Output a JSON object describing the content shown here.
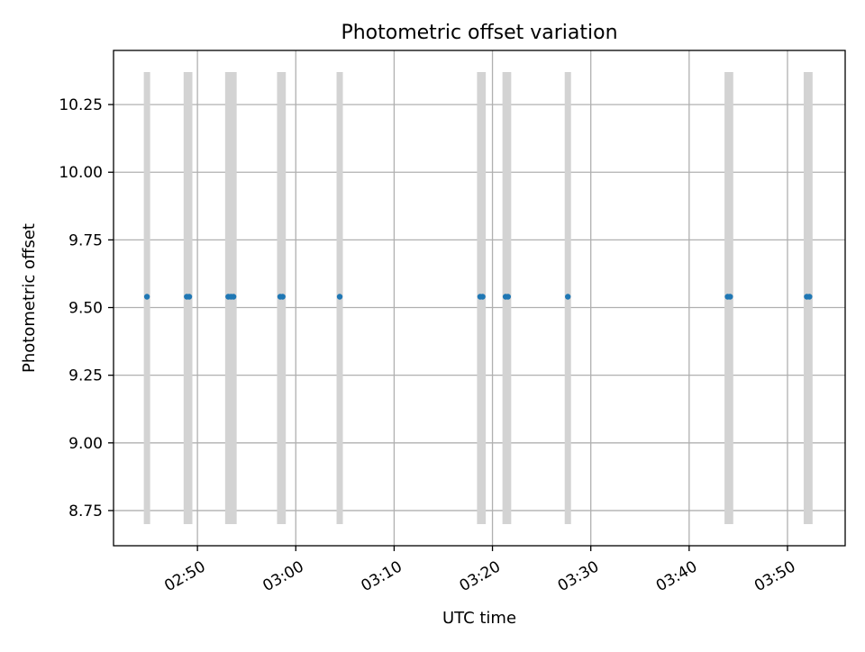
{
  "chart_data": {
    "type": "scatter",
    "title": "Photometric offset variation",
    "xlabel": "UTC time",
    "ylabel": "Photometric offset",
    "x_format": "HH:MM",
    "x_ticks": [
      "02:50",
      "03:00",
      "03:10",
      "03:20",
      "03:30",
      "03:40",
      "03:50"
    ],
    "y_ticks": [
      "8.75",
      "9.00",
      "9.25",
      "9.50",
      "9.75",
      "10.00",
      "10.25"
    ],
    "xlim": [
      "02:41:28",
      "03:55:52"
    ],
    "ylim": [
      8.62,
      10.45
    ],
    "grid": true,
    "series": [
      {
        "marker_color": "#1f77b4",
        "errorbar_color": "#d3d3d3",
        "points": [
          {
            "x": "02:44:52",
            "y": 9.54,
            "ylow": 8.7,
            "yhigh": 10.37
          },
          {
            "x": "02:48:55",
            "y": 9.54,
            "ylow": 8.7,
            "yhigh": 10.37
          },
          {
            "x": "02:49:10",
            "y": 9.54,
            "ylow": 8.7,
            "yhigh": 10.37
          },
          {
            "x": "02:53:08",
            "y": 9.54,
            "ylow": 8.7,
            "yhigh": 10.37
          },
          {
            "x": "02:53:25",
            "y": 9.54,
            "ylow": 8.7,
            "yhigh": 10.37
          },
          {
            "x": "02:53:40",
            "y": 9.54,
            "ylow": 8.7,
            "yhigh": 10.37
          },
          {
            "x": "02:58:25",
            "y": 9.54,
            "ylow": 8.7,
            "yhigh": 10.37
          },
          {
            "x": "02:58:40",
            "y": 9.54,
            "ylow": 8.7,
            "yhigh": 10.37
          },
          {
            "x": "03:04:28",
            "y": 9.54,
            "ylow": 8.7,
            "yhigh": 10.37
          },
          {
            "x": "03:18:45",
            "y": 9.54,
            "ylow": 8.7,
            "yhigh": 10.37
          },
          {
            "x": "03:19:00",
            "y": 9.54,
            "ylow": 8.7,
            "yhigh": 10.37
          },
          {
            "x": "03:21:20",
            "y": 9.54,
            "ylow": 8.7,
            "yhigh": 10.37
          },
          {
            "x": "03:21:35",
            "y": 9.54,
            "ylow": 8.7,
            "yhigh": 10.37
          },
          {
            "x": "03:27:40",
            "y": 9.54,
            "ylow": 8.7,
            "yhigh": 10.37
          },
          {
            "x": "03:43:55",
            "y": 9.54,
            "ylow": 8.7,
            "yhigh": 10.37
          },
          {
            "x": "03:44:10",
            "y": 9.54,
            "ylow": 8.7,
            "yhigh": 10.37
          },
          {
            "x": "03:51:58",
            "y": 9.54,
            "ylow": 8.7,
            "yhigh": 10.37
          },
          {
            "x": "03:52:14",
            "y": 9.54,
            "ylow": 8.7,
            "yhigh": 10.37
          }
        ]
      }
    ]
  }
}
